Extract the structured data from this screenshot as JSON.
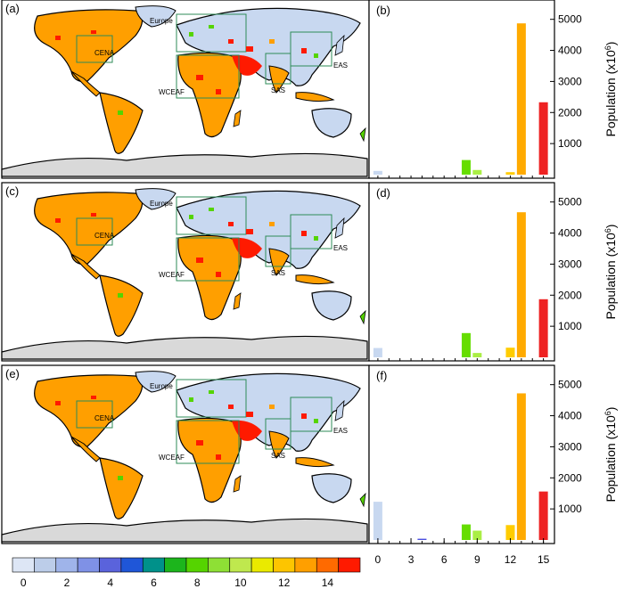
{
  "chart_data": [
    {
      "panel": "(a)",
      "type": "map",
      "region_labels": [
        "Europe",
        "CENA",
        "WCEAF",
        "SAS",
        "EAS"
      ]
    },
    {
      "panel": "(b)",
      "type": "bar",
      "x": [
        0,
        8,
        9,
        12,
        13,
        15
      ],
      "values": [
        120,
        470,
        150,
        80,
        4870,
        2330
      ],
      "colors": [
        "#c8d8f0",
        "#66dd00",
        "#aaee44",
        "#ffcc00",
        "#ffaa00",
        "#ee2222"
      ],
      "ylabel": "Population (x10",
      "ylabel_sup": "6",
      "ylabel_end": ")",
      "yticks": [
        1000,
        2000,
        3000,
        4000,
        5000
      ],
      "ylim": [
        0,
        5450
      ],
      "xlim": [
        -0.8,
        16
      ]
    },
    {
      "panel": "(c)",
      "type": "map",
      "region_labels": [
        "Europe",
        "CENA",
        "WCEAF",
        "SAS",
        "EAS"
      ]
    },
    {
      "panel": "(d)",
      "type": "bar",
      "x": [
        0,
        8,
        9,
        12,
        13,
        15
      ],
      "values": [
        300,
        780,
        140,
        310,
        4670,
        1870
      ],
      "colors": [
        "#c8d8f0",
        "#66dd00",
        "#aaee44",
        "#ffcc00",
        "#ffaa00",
        "#ee2222"
      ],
      "ylabel": "Population (x10",
      "ylabel_sup": "6",
      "ylabel_end": ")",
      "yticks": [
        1000,
        2000,
        3000,
        4000,
        5000
      ],
      "ylim": [
        0,
        5450
      ],
      "xlim": [
        -0.8,
        16
      ]
    },
    {
      "panel": "(e)",
      "type": "map",
      "region_labels": [
        "Europe",
        "CENA",
        "WCEAF",
        "SAS",
        "EAS"
      ]
    },
    {
      "panel": "(f)",
      "type": "bar",
      "x": [
        0,
        4,
        8,
        9,
        12,
        13,
        15
      ],
      "values": [
        1230,
        40,
        500,
        300,
        480,
        4720,
        1560
      ],
      "colors": [
        "#c8d8f0",
        "#4a4ee0",
        "#66dd00",
        "#aaee44",
        "#ffcc00",
        "#ffaa00",
        "#ee2222"
      ],
      "ylabel": "Population (x10",
      "ylabel_sup": "6",
      "ylabel_end": ")",
      "yticks": [
        1000,
        2000,
        3000,
        4000,
        5000
      ],
      "ylim": [
        0,
        5450
      ],
      "xlim": [
        -0.8,
        16
      ],
      "xticks": [
        0,
        3,
        6,
        9,
        12,
        15
      ]
    }
  ],
  "colorbar": {
    "colors": [
      "#dde6f5",
      "#bccde9",
      "#9fb4ea",
      "#7f91e6",
      "#5a63dc",
      "#1f56d8",
      "#00918a",
      "#1cb51c",
      "#55d400",
      "#8ee035",
      "#bfe84e",
      "#eaea00",
      "#fdc500",
      "#ff9f00",
      "#ff6a00",
      "#ff1a00"
    ],
    "tick_labels": [
      "0",
      "2",
      "4",
      "6",
      "8",
      "10",
      "12",
      "14"
    ]
  },
  "map_colors": {
    "land_base": "#c8d8f0",
    "antarctica": "#d9d9d9",
    "ocean": "#ffffff",
    "region_box": "#2e8b57"
  }
}
